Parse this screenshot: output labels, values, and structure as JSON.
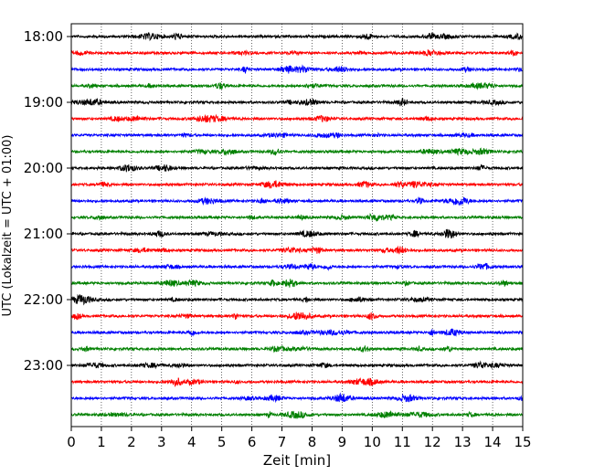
{
  "chart_data": {
    "type": "line",
    "title": "",
    "xlabel": "Zeit  [min]",
    "ylabel": "UTC (Lokalzeit = UTC + 01:00)",
    "xlim": [
      0,
      15
    ],
    "x_ticks": [
      "0",
      "1",
      "2",
      "3",
      "4",
      "5",
      "6",
      "7",
      "8",
      "9",
      "10",
      "11",
      "12",
      "13",
      "14",
      "15"
    ],
    "y_ticks": [
      "18:00",
      "19:00",
      "20:00",
      "21:00",
      "22:00",
      "23:00"
    ],
    "grid": "vertical-dotted",
    "colors": [
      "#000000",
      "#ff0000",
      "#0000ff",
      "#008000"
    ],
    "traces": [
      {
        "start": "18:00",
        "color": "#000000"
      },
      {
        "start": "18:15",
        "color": "#ff0000"
      },
      {
        "start": "18:30",
        "color": "#0000ff"
      },
      {
        "start": "18:45",
        "color": "#008000"
      },
      {
        "start": "19:00",
        "color": "#000000"
      },
      {
        "start": "19:15",
        "color": "#ff0000"
      },
      {
        "start": "19:30",
        "color": "#0000ff"
      },
      {
        "start": "19:45",
        "color": "#008000"
      },
      {
        "start": "20:00",
        "color": "#000000"
      },
      {
        "start": "20:15",
        "color": "#ff0000"
      },
      {
        "start": "20:30",
        "color": "#0000ff"
      },
      {
        "start": "20:45",
        "color": "#008000"
      },
      {
        "start": "21:00",
        "color": "#000000"
      },
      {
        "start": "21:15",
        "color": "#ff0000"
      },
      {
        "start": "21:30",
        "color": "#0000ff"
      },
      {
        "start": "21:45",
        "color": "#008000"
      },
      {
        "start": "22:00",
        "color": "#000000"
      },
      {
        "start": "22:15",
        "color": "#ff0000"
      },
      {
        "start": "22:30",
        "color": "#0000ff"
      },
      {
        "start": "22:45",
        "color": "#008000"
      },
      {
        "start": "23:00",
        "color": "#000000"
      },
      {
        "start": "23:15",
        "color": "#ff0000"
      },
      {
        "start": "23:30",
        "color": "#0000ff"
      },
      {
        "start": "23:45",
        "color": "#008000"
      }
    ]
  }
}
